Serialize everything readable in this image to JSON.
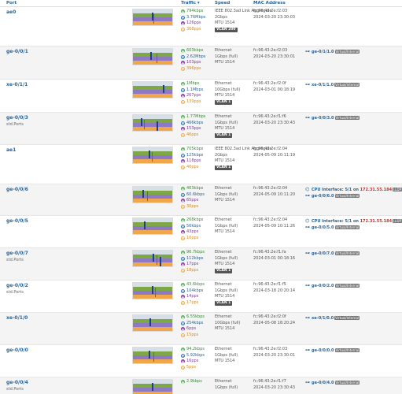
{
  "headers": {
    "port": "Port",
    "traffic": "Traffic",
    "speed": "Speed",
    "mac": "MAC Address"
  },
  "rows": [
    {
      "port": "ae0",
      "desc": "",
      "traffic": [
        "794kbps",
        "3.76Mbps",
        "126pps",
        "368pps"
      ],
      "speed": [
        "IEEE 802.3ad Link Aggregate",
        "2Gbps",
        "MTU 1514"
      ],
      "vlan": "VLAN 200",
      "mac": [
        "fc:96:43:2e:f2:03",
        "2024-03-20 23:30:03"
      ],
      "neighbors": []
    },
    {
      "port": "ge-0/0/1",
      "desc": "",
      "traffic": [
        "603kbps",
        "2.62Mbps",
        "103pps",
        "396pps"
      ],
      "speed": [
        "Ethernet",
        "1Gbps (full)",
        "MTU 1514"
      ],
      "vlan": "",
      "mac": [
        "fc:96:43:2e:f2:03",
        "2024-03-20 23:30:01"
      ],
      "neighbors": [
        {
          "icon": "⊶",
          "link": "ge-0/1/1.0",
          "ip": "",
          "tag": "Virtual/Internal"
        }
      ]
    },
    {
      "port": "xe-0/1/1",
      "desc": "",
      "traffic": [
        "1Mbps",
        "1.1Mbps",
        "267pps",
        "139pps"
      ],
      "speed": [
        "Ethernet",
        "10Gbps (full)",
        "MTU 1514"
      ],
      "vlan": "VLAN 1",
      "mac": [
        "fc:96:43:2e:f2:0f",
        "2024-03-01 00:18:19"
      ],
      "neighbors": [
        {
          "icon": "⊶",
          "link": "xe-0/1/1.0",
          "ip": "",
          "tag": "Virtual/Internal"
        }
      ]
    },
    {
      "port": "ge-0/0/3",
      "desc": "std.Ports",
      "traffic": [
        "1.77Mbps",
        "466kbps",
        "153pps",
        "46pps"
      ],
      "speed": [
        "Ethernet",
        "1Gbps (full)",
        "MTU 1514"
      ],
      "vlan": "VLAN 1",
      "mac": [
        "fc:96:43:2e:f1:f6",
        "2024-03-20 23:30:43"
      ],
      "neighbors": [
        {
          "icon": "⊶",
          "link": "ge-0/0/3.0",
          "ip": "",
          "tag": "Virtual/Internal"
        }
      ]
    },
    {
      "port": "ae1",
      "desc": "",
      "traffic": [
        "705kbps",
        "125kbps",
        "118pps",
        "40pps"
      ],
      "speed": [
        "IEEE 802.3ad Link Aggregate",
        "2Gbps",
        "MTU 1514"
      ],
      "vlan": "VLAN 1",
      "mac": [
        "fc:96:43:2e:f2:04",
        "2024-05-09 10:11:19"
      ],
      "neighbors": []
    },
    {
      "port": "ge-0/0/6",
      "desc": "",
      "traffic": [
        "463kbps",
        "60.6kbps",
        "65pps",
        "30pps"
      ],
      "speed": [
        "Ethernet",
        "1Gbps (full)",
        "MTU 1514"
      ],
      "vlan": "",
      "mac": [
        "fc:96:43:2e:f2:04",
        "2024-05-09 10:11:20"
      ],
      "neighbors": [
        {
          "icon": "⌬",
          "link": "CPU Interface: 5/1 on",
          "ip": "172.31.55.184",
          "tag": "LLDP"
        },
        {
          "icon": "⊶",
          "link": "ge-0/0/6.0",
          "ip": "",
          "tag": "Virtual/Internal"
        }
      ]
    },
    {
      "port": "ge-0/0/5",
      "desc": "",
      "traffic": [
        "268kbps",
        "56kbps",
        "43pps",
        "10pps"
      ],
      "speed": [
        "Ethernet",
        "1Gbps (full)",
        "MTU 1514"
      ],
      "vlan": "",
      "mac": [
        "fc:96:43:2e:f2:04",
        "2024-05-09 10:11:26"
      ],
      "neighbors": [
        {
          "icon": "⌬",
          "link": "CPU Interface: 5/1 on",
          "ip": "172.31.55.184",
          "tag": "LLDP"
        },
        {
          "icon": "⊶",
          "link": "ge-0/0/5.0",
          "ip": "",
          "tag": "Virtual/Internal"
        }
      ]
    },
    {
      "port": "ge-0/0/7",
      "desc": "std.Ports",
      "traffic": [
        "96.7kbps",
        "112kbps",
        "17pps",
        "18pps"
      ],
      "speed": [
        "Ethernet",
        "1Gbps (full)",
        "MTU 1514"
      ],
      "vlan": "VLAN 1",
      "mac": [
        "fc:96:43:2e:f1:fa",
        "2024-03-01 00:18:16"
      ],
      "neighbors": [
        {
          "icon": "⊶",
          "link": "ge-0/0/7.0",
          "ip": "",
          "tag": "Virtual/Internal"
        }
      ]
    },
    {
      "port": "ge-0/0/2",
      "desc": "std.Ports",
      "traffic": [
        "43.6kbps",
        "104kbps",
        "14pps",
        "17pps"
      ],
      "speed": [
        "Ethernet",
        "1Gbps (full)",
        "MTU 1514"
      ],
      "vlan": "VLAN 1",
      "mac": [
        "fc:96:43:2e:f1:f5",
        "2024-03-18 20:20:14"
      ],
      "neighbors": [
        {
          "icon": "⊶",
          "link": "ge-0/0/2.0",
          "ip": "",
          "tag": "Virtual/Internal"
        }
      ]
    },
    {
      "port": "xe-0/1/0",
      "desc": "",
      "traffic": [
        "6.55kbps",
        "254kbps",
        "6pps",
        "15pps"
      ],
      "speed": [
        "Ethernet",
        "10Gbps (full)",
        "MTU 1514"
      ],
      "vlan": "",
      "mac": [
        "fc:96:43:2e:f2:0f",
        "2024-05-08 18:20:24"
      ],
      "neighbors": [
        {
          "icon": "⊶",
          "link": "xe-0/1/0.0",
          "ip": "",
          "tag": "Virtual/Internal"
        }
      ]
    },
    {
      "port": "ge-0/0/0",
      "desc": "",
      "traffic": [
        "94.2kbps",
        "5.92kbps",
        "16pps",
        "5pps"
      ],
      "speed": [
        "Ethernet",
        "1Gbps (full)",
        "MTU 1514"
      ],
      "vlan": "",
      "mac": [
        "fc:96:43:2e:f2:03",
        "2024-03-20 23:30:01"
      ],
      "neighbors": [
        {
          "icon": "⊶",
          "link": "ge-0/0/0.0",
          "ip": "",
          "tag": "Virtual/Internal"
        }
      ]
    },
    {
      "port": "ge-0/0/4",
      "desc": "std.Ports",
      "traffic": [
        "2.9kbps",
        "",
        "",
        ""
      ],
      "speed": [
        "Ethernet",
        "1Gbps (full)",
        ""
      ],
      "vlan": "",
      "mac": [
        "fc:96:43:2e:f1:f7",
        "2024-03-20 23:30:43"
      ],
      "neighbors": [
        {
          "icon": "⊶",
          "link": "ge-0/0/4.0",
          "ip": "",
          "tag": "Virtual/Internal"
        }
      ]
    }
  ]
}
